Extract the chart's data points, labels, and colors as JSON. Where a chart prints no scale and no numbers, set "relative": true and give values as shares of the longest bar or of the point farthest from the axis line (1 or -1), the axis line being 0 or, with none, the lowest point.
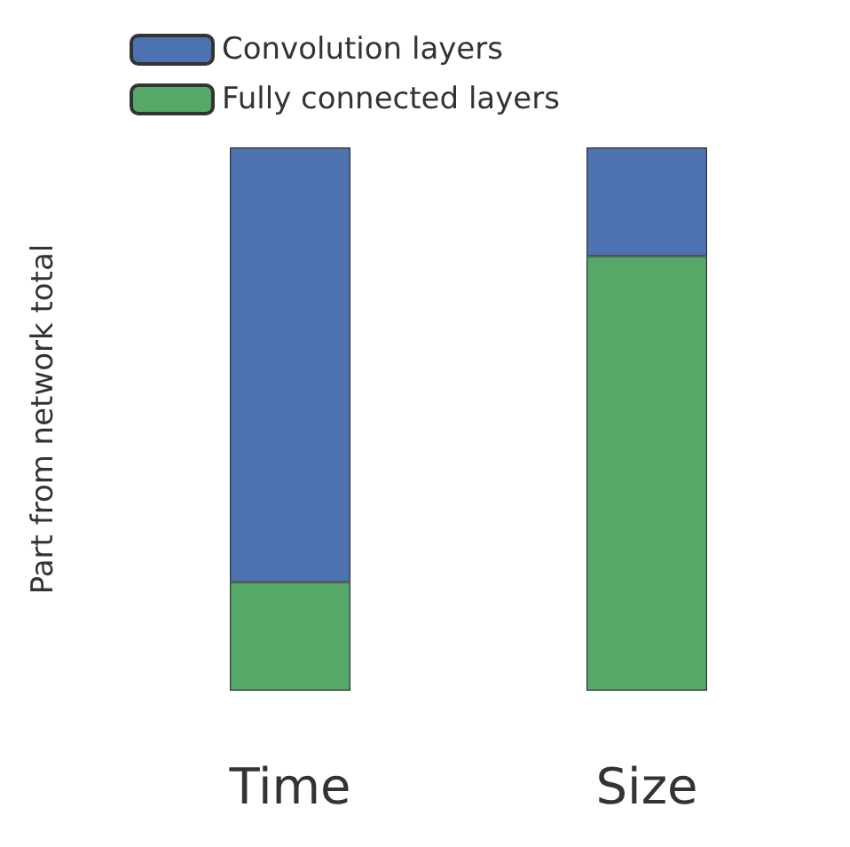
{
  "chart_data": {
    "type": "bar",
    "stacked": true,
    "relative": true,
    "ylabel": "Part from network total",
    "categories": [
      "Time",
      "Size"
    ],
    "series": [
      {
        "name": "Fully connected layers",
        "color": "#55a868",
        "values": [
          0.2,
          0.8
        ]
      },
      {
        "name": "Convolution layers",
        "color": "#4c72b0",
        "values": [
          0.8,
          0.2
        ]
      }
    ],
    "legend": "top left",
    "grid": false
  }
}
